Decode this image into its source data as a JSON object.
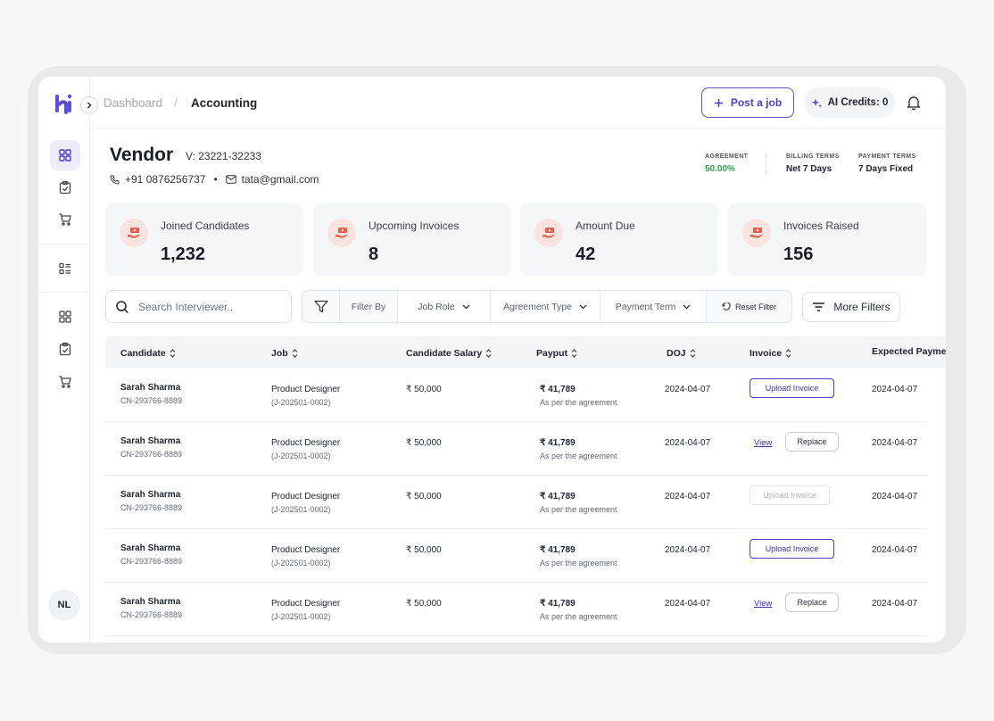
{
  "breadcrumb": {
    "parent": "Dashboard",
    "separator": "/",
    "current": "Accounting"
  },
  "topbar": {
    "post_job": "Post a job",
    "ai_credits": "AI Credits: 0"
  },
  "sidebar": {
    "avatar_initials": "NL"
  },
  "vendor": {
    "title": "Vendor",
    "id": "V: 23221-32233",
    "phone": "+91 0876256737",
    "dot": "•",
    "email": "tata@gmail.com"
  },
  "meta": [
    {
      "label": "Agreement",
      "value": "50.00%"
    },
    {
      "label": "Billing Terms",
      "value": "Net 7 Days"
    },
    {
      "label": "Payment Terms",
      "value": "7 Days Fixed"
    }
  ],
  "stats": [
    {
      "label": "Joined Candidates",
      "value": "1,232"
    },
    {
      "label": "Upcoming Invoices",
      "value": "8"
    },
    {
      "label": "Amount Due",
      "value": "42"
    },
    {
      "label": "Invoices Raised",
      "value": "156"
    }
  ],
  "search": {
    "placeholder": "Search Interviewer.."
  },
  "filters": {
    "filter_by": "Filter By",
    "job_role": "Job Role",
    "agreement_type": "Agreement Type",
    "payment_term": "Payment Term",
    "reset": "Reset Filter",
    "more": "More Filters"
  },
  "table": {
    "headers": [
      "Candidate",
      "Job",
      "Candidate Salary",
      "Payput",
      "DOJ",
      "Invoice",
      "Expected Payment"
    ],
    "rows": [
      {
        "name": "Sarah Sharma",
        "cid": "CN-293766-8889",
        "job": "Product Designer",
        "jid": "(J-202501-0002)",
        "salary": "₹ 50,000",
        "payout": "₹ 41,789",
        "payout_note": "As per the agreement",
        "doj": "2024-04-07",
        "invoice": "Upload Invoice",
        "expected": "2024-04-07"
      },
      {
        "name": "Sarah Sharma",
        "cid": "CN-293766-8889",
        "job": "Product Designer",
        "jid": "(J-202501-0002)",
        "salary": "₹ 50,000",
        "payout": "₹ 41,789",
        "payout_note": "As per the agreement",
        "doj": "2024-04-07",
        "view": "View",
        "replace": "Replace",
        "expected": "2024-04-07"
      },
      {
        "name": "Sarah Sharma",
        "cid": "CN-293766-8889",
        "job": "Product Designer",
        "jid": "(J-202501-0002)",
        "salary": "₹ 50,000",
        "payout": "₹ 41,789",
        "payout_note": "As per the agreement",
        "doj": "2024-04-07",
        "invoice": "Upload Invoice",
        "expected": "2024-04-07"
      },
      {
        "name": "Sarah Sharma",
        "cid": "CN-293766-8889",
        "job": "Product Designer",
        "jid": "(J-202501-0002)",
        "salary": "₹ 50,000",
        "payout": "₹ 41,789",
        "payout_note": "As per the agreement",
        "doj": "2024-04-07",
        "invoice": "Upload Invoice",
        "expected": "2024-04-07"
      },
      {
        "name": "Sarah Sharma",
        "cid": "CN-293766-8889",
        "job": "Product Designer",
        "jid": "(J-202501-0002)",
        "salary": "₹ 50,000",
        "payout": "₹ 41,789",
        "payout_note": "As per the agreement",
        "doj": "2024-04-07",
        "view": "View",
        "replace": "Replace",
        "expected": "2024-04-07"
      }
    ]
  },
  "colors": {
    "accent": "#4a3fc7",
    "green": "#2e9c4f",
    "stat_icon_bg": "#fbe3df",
    "stat_icon": "#e26050"
  }
}
